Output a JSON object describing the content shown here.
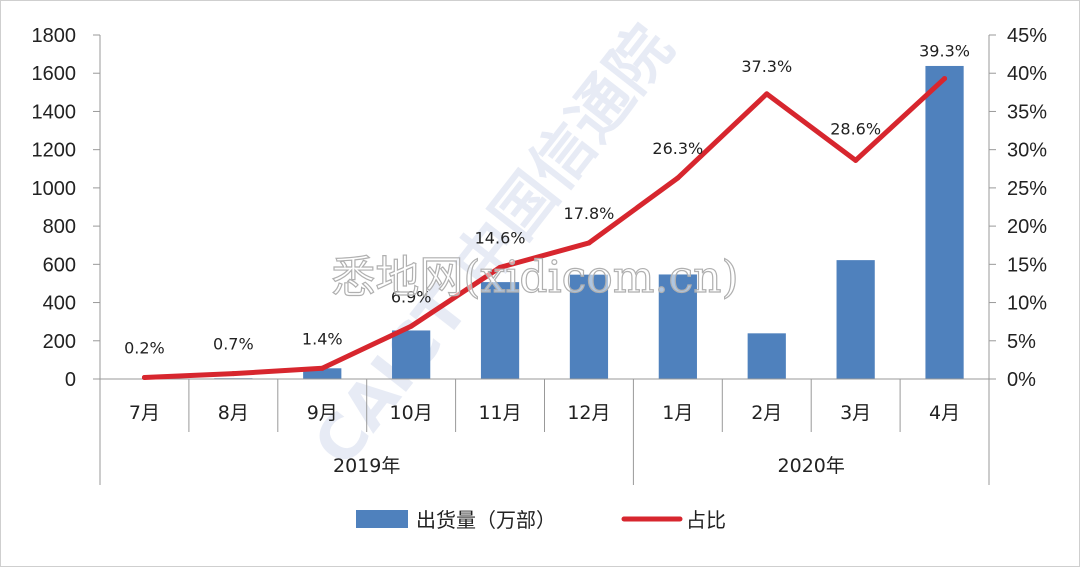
{
  "chart_data": {
    "type": "bar",
    "categories": [
      "7月",
      "8月",
      "9月",
      "10月",
      "11月",
      "12月",
      "1月",
      "2月",
      "3月",
      "4月"
    ],
    "year_groups": [
      {
        "label": "2019年",
        "span": 6
      },
      {
        "label": "2020年",
        "span": 4
      }
    ],
    "series": [
      {
        "name": "出货量（万部）",
        "type": "bar",
        "axis": "left",
        "color": "#4F81BD",
        "values": [
          2,
          4,
          56,
          254,
          507,
          546,
          547,
          239,
          622,
          1638
        ]
      },
      {
        "name": "占比",
        "type": "line",
        "axis": "right",
        "color": "#D7262E",
        "values": [
          0.2,
          0.7,
          1.4,
          6.9,
          14.6,
          17.8,
          26.3,
          37.3,
          28.6,
          39.3
        ],
        "labels": [
          "0.2%",
          "0.7%",
          "1.4%",
          "6.9%",
          "14.6%",
          "17.8%",
          "26.3%",
          "37.3%",
          "28.6%",
          "39.3%"
        ]
      }
    ],
    "y_left": {
      "min": 0,
      "max": 1800,
      "step": 200,
      "ticks": [
        "0",
        "200",
        "400",
        "600",
        "800",
        "1000",
        "1200",
        "1400",
        "1600",
        "1800"
      ]
    },
    "y_right": {
      "min": 0,
      "max": 45,
      "step": 5,
      "ticks": [
        "0%",
        "5%",
        "10%",
        "15%",
        "20%",
        "25%",
        "30%",
        "35%",
        "40%",
        "45%"
      ]
    },
    "grid": false,
    "legend_position": "bottom",
    "title": "",
    "xlabel": "",
    "ylabel": ""
  },
  "watermarks": {
    "text": "悉地网(xidicom.cn)",
    "logo": "CAICT 中国信通院"
  }
}
